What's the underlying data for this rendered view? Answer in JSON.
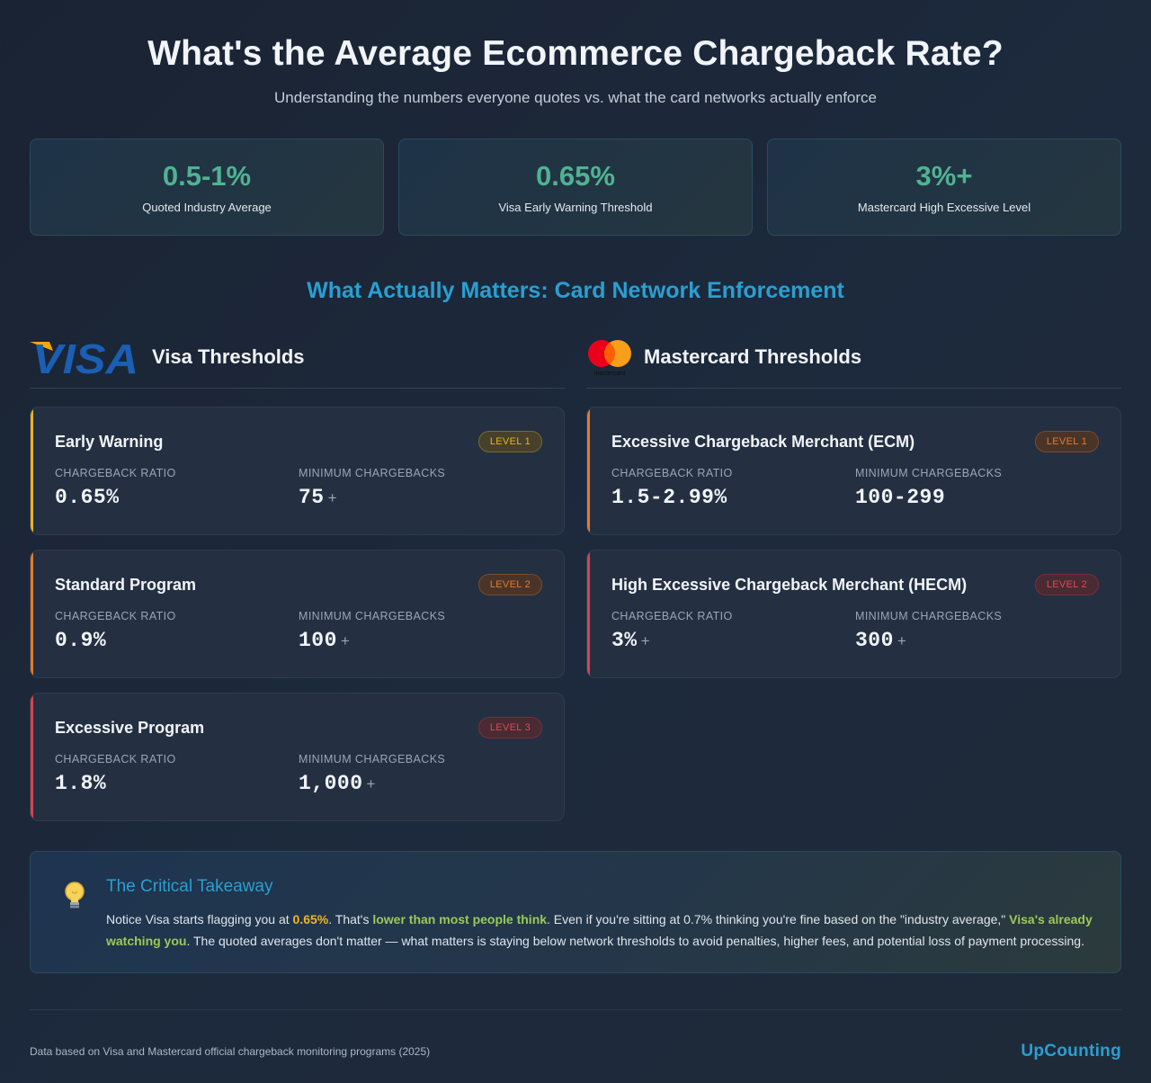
{
  "header": {
    "title": "What's the Average Ecommerce Chargeback Rate?",
    "subtitle": "Understanding the numbers everyone quotes vs. what the card networks actually enforce"
  },
  "stats": [
    {
      "value": "0.5-1%",
      "label": "Quoted Industry Average"
    },
    {
      "value": "0.65%",
      "label": "Visa Early Warning Threshold"
    },
    {
      "value": "3%+",
      "label": "Mastercard High Excessive Level"
    }
  ],
  "section_title": "What Actually Matters: Card Network Enforcement",
  "labels": {
    "ratio": "CHARGEBACK RATIO",
    "minimum": "MINIMUM CHARGEBACKS",
    "plus": "+"
  },
  "visa": {
    "logo_text": "VISA",
    "title": "Visa Thresholds",
    "cards": [
      {
        "name": "Early Warning",
        "level": "LEVEL 1",
        "ratio": "0.65%",
        "minimum": "75"
      },
      {
        "name": "Standard Program",
        "level": "LEVEL 2",
        "ratio": "0.9%",
        "minimum": "100"
      },
      {
        "name": "Excessive Program",
        "level": "LEVEL 3",
        "ratio": "1.8%",
        "minimum": "1,000"
      }
    ]
  },
  "mastercard": {
    "logo_text": "mastercard",
    "title": "Mastercard Thresholds",
    "cards": [
      {
        "name": "Excessive Chargeback Merchant (ECM)",
        "level": "LEVEL 1",
        "ratio": "1.5-2.99%",
        "minimum": "100-299"
      },
      {
        "name": "High Excessive Chargeback Merchant (HECM)",
        "level": "LEVEL 2",
        "ratio": "3%",
        "minimum": "300"
      }
    ]
  },
  "takeaway": {
    "title": "The Critical Takeaway",
    "t1": "Notice Visa starts flagging you at ",
    "h1": "0.65%",
    "t2": ". That's ",
    "h2": "lower than most people think",
    "t3": ". Even if you're sitting at 0.7% thinking you're fine based on the \"industry average,\" ",
    "h3": "Visa's already watching you",
    "t4": ". The quoted averages don't matter — what matters is staying below network thresholds to avoid penalties, higher fees, and potential loss of payment processing."
  },
  "footer": {
    "note": "Data based on Visa and Mastercard official chargeback monitoring programs (2025)",
    "brand": "UpCounting"
  },
  "colors": {
    "accent_blue": "#2a9fd1",
    "accent_green": "#4fb393",
    "yellow": "#e6b325",
    "orange": "#e57a2c",
    "red": "#d9434f"
  }
}
